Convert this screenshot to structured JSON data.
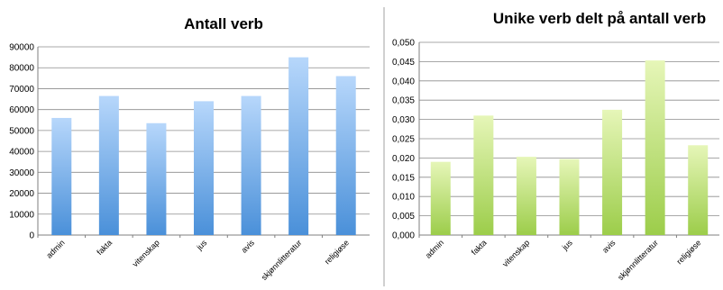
{
  "chart_data": [
    {
      "type": "bar",
      "title": "Antall verb",
      "categories": [
        "admin",
        "fakta",
        "vitenskap",
        "jus",
        "avis",
        "skjønnlitteratur",
        "religiøse"
      ],
      "values": [
        56000,
        66500,
        53500,
        64000,
        66500,
        85000,
        76000
      ],
      "yticks": [
        "0",
        "10000",
        "20000",
        "30000",
        "40000",
        "50000",
        "60000",
        "70000",
        "80000",
        "90000"
      ],
      "ylim": [
        0,
        90000
      ],
      "grid": true,
      "legend": "none",
      "colors": {
        "bar_top": "#b7d7fb",
        "bar_bottom": "#4a90d9"
      }
    },
    {
      "type": "bar",
      "title": "Unike verb delt på antall verb",
      "categories": [
        "admin",
        "fakta",
        "vitenskap",
        "jus",
        "avis",
        "skjønnlitteratur",
        "religiøse"
      ],
      "values": [
        0.019,
        0.031,
        0.0203,
        0.0197,
        0.0325,
        0.0453,
        0.0233
      ],
      "yticks": [
        "0,000",
        "0,005",
        "0,010",
        "0,015",
        "0,020",
        "0,025",
        "0,030",
        "0,035",
        "0,040",
        "0,045",
        "0,050"
      ],
      "ylim": [
        0,
        0.05
      ],
      "grid": true,
      "legend": "none",
      "colors": {
        "bar_top": "#e6f6b8",
        "bar_bottom": "#9ccd4a"
      }
    }
  ]
}
